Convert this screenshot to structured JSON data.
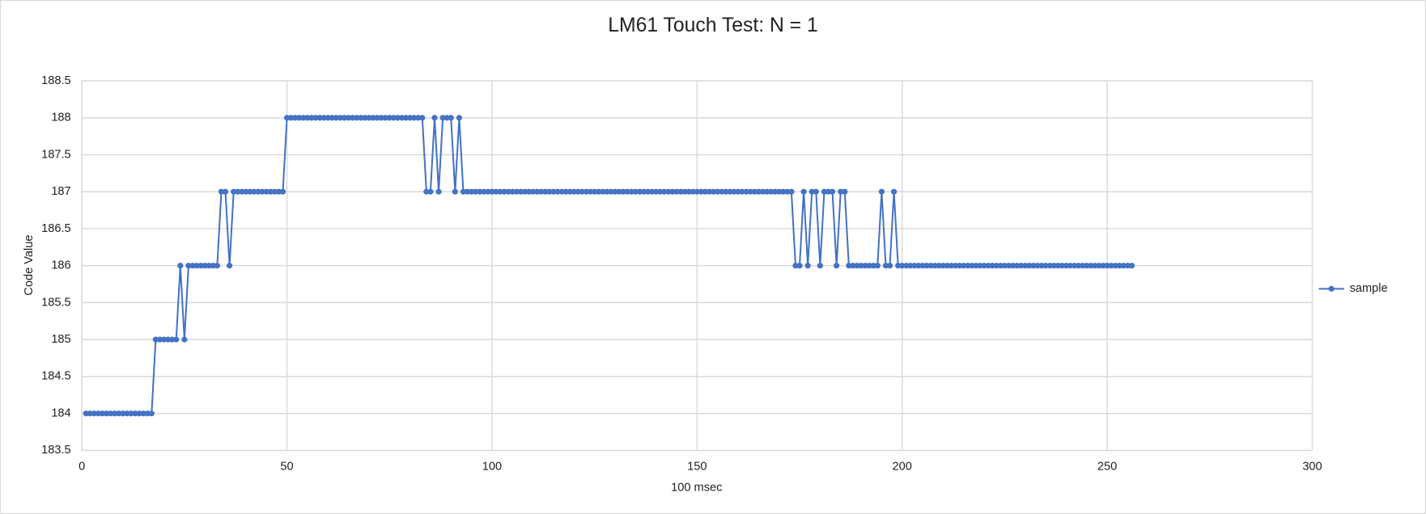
{
  "chart_data": {
    "type": "line",
    "title": "LM61 Touch Test: N = 1",
    "x_label": "100 msec",
    "y_label": "Code Value",
    "xlim": [
      0,
      300
    ],
    "xticks": [
      0,
      50,
      100,
      150,
      200,
      250,
      300
    ],
    "ylim": [
      183.5,
      188.5
    ],
    "yticks": [
      183.5,
      184,
      184.5,
      185,
      185.5,
      186,
      186.5,
      187,
      187.5,
      188,
      188.5
    ],
    "grid": true,
    "legend": "right",
    "x": [
      1,
      2,
      3,
      4,
      5,
      6,
      7,
      8,
      9,
      10,
      11,
      12,
      13,
      14,
      15,
      16,
      17,
      18,
      19,
      20,
      21,
      22,
      23,
      24,
      25,
      26,
      27,
      28,
      29,
      30,
      31,
      32,
      33,
      34,
      35,
      36,
      37,
      38,
      39,
      40,
      41,
      42,
      43,
      44,
      45,
      46,
      47,
      48,
      49,
      50,
      51,
      52,
      53,
      54,
      55,
      56,
      57,
      58,
      59,
      60,
      61,
      62,
      63,
      64,
      65,
      66,
      67,
      68,
      69,
      70,
      71,
      72,
      73,
      74,
      75,
      76,
      77,
      78,
      79,
      80,
      81,
      82,
      83,
      84,
      85,
      86,
      87,
      88,
      89,
      90,
      91,
      92,
      93,
      94,
      95,
      96,
      97,
      98,
      99,
      100,
      101,
      102,
      103,
      104,
      105,
      106,
      107,
      108,
      109,
      110,
      111,
      112,
      113,
      114,
      115,
      116,
      117,
      118,
      119,
      120,
      121,
      122,
      123,
      124,
      125,
      126,
      127,
      128,
      129,
      130,
      131,
      132,
      133,
      134,
      135,
      136,
      137,
      138,
      139,
      140,
      141,
      142,
      143,
      144,
      145,
      146,
      147,
      148,
      149,
      150,
      151,
      152,
      153,
      154,
      155,
      156,
      157,
      158,
      159,
      160,
      161,
      162,
      163,
      164,
      165,
      166,
      167,
      168,
      169,
      170,
      171,
      172,
      173,
      174,
      175,
      176,
      177,
      178,
      179,
      180,
      181,
      182,
      183,
      184,
      185,
      186,
      187,
      188,
      189,
      190,
      191,
      192,
      193,
      194,
      195,
      196,
      197,
      198,
      199,
      200,
      201,
      202,
      203,
      204,
      205,
      206,
      207,
      208,
      209,
      210,
      211,
      212,
      213,
      214,
      215,
      216,
      217,
      218,
      219,
      220,
      221,
      222,
      223,
      224,
      225,
      226,
      227,
      228,
      229,
      230,
      231,
      232,
      233,
      234,
      235,
      236,
      237,
      238,
      239,
      240,
      241,
      242,
      243,
      244,
      245,
      246,
      247,
      248,
      249,
      250,
      251,
      252,
      253,
      254,
      255,
      256
    ],
    "series": [
      {
        "name": "sample",
        "color": "#4472c4",
        "values": [
          184,
          184,
          184,
          184,
          184,
          184,
          184,
          184,
          184,
          184,
          184,
          184,
          184,
          184,
          184,
          184,
          184,
          185,
          185,
          185,
          185,
          185,
          185,
          186,
          185,
          186,
          186,
          186,
          186,
          186,
          186,
          186,
          186,
          187,
          187,
          186,
          187,
          187,
          187,
          187,
          187,
          187,
          187,
          187,
          187,
          187,
          187,
          187,
          187,
          188,
          188,
          188,
          188,
          188,
          188,
          188,
          188,
          188,
          188,
          188,
          188,
          188,
          188,
          188,
          188,
          188,
          188,
          188,
          188,
          188,
          188,
          188,
          188,
          188,
          188,
          188,
          188,
          188,
          188,
          188,
          188,
          188,
          188,
          187,
          187,
          188,
          187,
          188,
          188,
          188,
          187,
          188,
          187,
          187,
          187,
          187,
          187,
          187,
          187,
          187,
          187,
          187,
          187,
          187,
          187,
          187,
          187,
          187,
          187,
          187,
          187,
          187,
          187,
          187,
          187,
          187,
          187,
          187,
          187,
          187,
          187,
          187,
          187,
          187,
          187,
          187,
          187,
          187,
          187,
          187,
          187,
          187,
          187,
          187,
          187,
          187,
          187,
          187,
          187,
          187,
          187,
          187,
          187,
          187,
          187,
          187,
          187,
          187,
          187,
          187,
          187,
          187,
          187,
          187,
          187,
          187,
          187,
          187,
          187,
          187,
          187,
          187,
          187,
          187,
          187,
          187,
          187,
          187,
          187,
          187,
          187,
          187,
          187,
          186,
          186,
          187,
          186,
          187,
          187,
          186,
          187,
          187,
          187,
          186,
          187,
          187,
          186,
          186,
          186,
          186,
          186,
          186,
          186,
          186,
          187,
          186,
          186,
          187,
          186,
          186,
          186,
          186,
          186,
          186,
          186,
          186,
          186,
          186,
          186,
          186,
          186,
          186,
          186,
          186,
          186,
          186,
          186,
          186,
          186,
          186,
          186,
          186,
          186,
          186,
          186,
          186,
          186,
          186,
          186,
          186,
          186,
          186,
          186,
          186,
          186,
          186,
          186,
          186,
          186,
          186,
          186,
          186,
          186,
          186,
          186,
          186,
          186,
          186,
          186,
          186,
          186,
          186,
          186,
          186,
          186,
          186
        ]
      }
    ]
  }
}
